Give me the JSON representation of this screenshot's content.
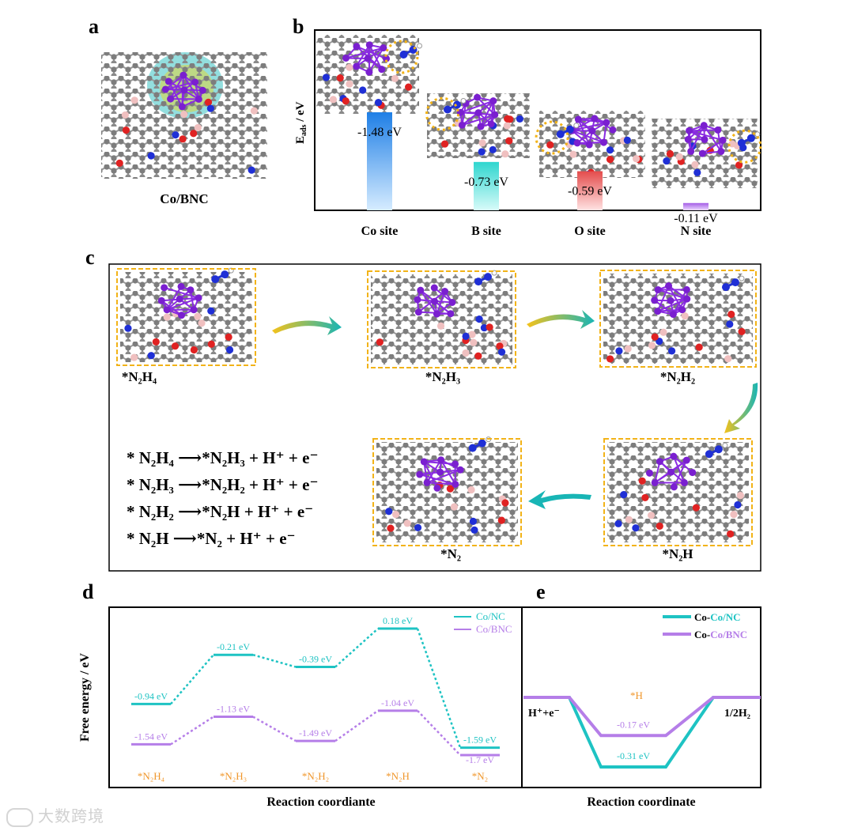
{
  "panels": {
    "a": "a",
    "b": "b",
    "c": "c",
    "d": "d",
    "e": "e"
  },
  "panel_a": {
    "caption": "Co/BNC"
  },
  "panel_b": {
    "ylabel_main": "E",
    "ylabel_sub": "ads",
    "ylabel_unit": " / eV"
  },
  "panel_c": {
    "states": [
      "*N₂H₄",
      "*N₂H₃",
      "*N₂H₂",
      "*N₂H",
      "*N₂"
    ],
    "reactions": [
      "* N₂H₄ ⟶*N₂H₃ + H⁺ + e⁻",
      "* N₂H₃ ⟶*N₂H₂ + H⁺ + e⁻",
      "* N₂H₂ ⟶*N₂H + H⁺ + e⁻",
      "* N₂H  ⟶*N₂ + H⁺ + e⁻"
    ]
  },
  "colors": {
    "teal": "#1ec3c3",
    "purple": "#b57ee8",
    "orange": "#f0962a",
    "yellow_dash": "#f2b318"
  },
  "chart_data": [
    {
      "id": "b",
      "type": "bar",
      "title": "",
      "ylabel": "Eads / eV",
      "categories": [
        "Co site",
        "B site",
        "O site",
        "N site"
      ],
      "values": [
        -1.48,
        -0.73,
        -0.59,
        -0.11
      ],
      "value_labels": [
        "-1.48 eV",
        "-0.73 eV",
        "-0.59 eV",
        "-0.11 eV"
      ],
      "bar_colors": [
        "#2b8fe8",
        "#36d9d4",
        "#e95a5a",
        "#b06ae8"
      ],
      "ylim": [
        -1.8,
        0
      ]
    },
    {
      "id": "d",
      "type": "line",
      "xlabel": "Reaction coordiante",
      "ylabel": "Free energy / eV",
      "categories": [
        "*N₂H₄",
        "*N₂H₃",
        "*N₂H₂",
        "*N₂H",
        "*N₂"
      ],
      "legend": [
        "Co/NC",
        "Co/BNC"
      ],
      "series": [
        {
          "name": "Co/NC",
          "color": "#1ec3c3",
          "values": [
            -0.94,
            -0.21,
            -0.39,
            0.18,
            -1.59
          ],
          "labels": [
            "-0.94 eV",
            "-0.21 eV",
            "-0.39 eV",
            "0.18 eV",
            "-1.59 eV"
          ]
        },
        {
          "name": "Co/BNC",
          "color": "#b57ee8",
          "values": [
            -1.54,
            -1.13,
            -1.49,
            -1.04,
            -1.7
          ],
          "labels": [
            "-1.54 eV",
            "-1.13 eV",
            "-1.49 eV",
            "-1.04 eV",
            "-1.7 eV"
          ]
        }
      ],
      "ylim": [
        -2.0,
        0.4
      ]
    },
    {
      "id": "e",
      "type": "line",
      "xlabel": "Reaction coordinate",
      "categories": [
        "H⁺+e⁻",
        "*H",
        "1/2H₂"
      ],
      "intermediate_label": "*H",
      "legend": [
        "Co-Co/NC",
        "Co-Co/BNC"
      ],
      "series": [
        {
          "name": "Co-Co/NC",
          "prefix": "Co-",
          "suffix": "Co/NC",
          "color": "#1ec3c3",
          "values": [
            0,
            -0.31,
            0
          ],
          "labels": [
            "",
            "-0.31 eV",
            ""
          ]
        },
        {
          "name": "Co-Co/BNC",
          "prefix": "Co-",
          "suffix": "Co/BNC",
          "color": "#b57ee8",
          "values": [
            0,
            -0.17,
            0
          ],
          "labels": [
            "",
            "-0.17 eV",
            ""
          ]
        }
      ],
      "ylim": [
        -0.4,
        0.2
      ]
    }
  ]
}
